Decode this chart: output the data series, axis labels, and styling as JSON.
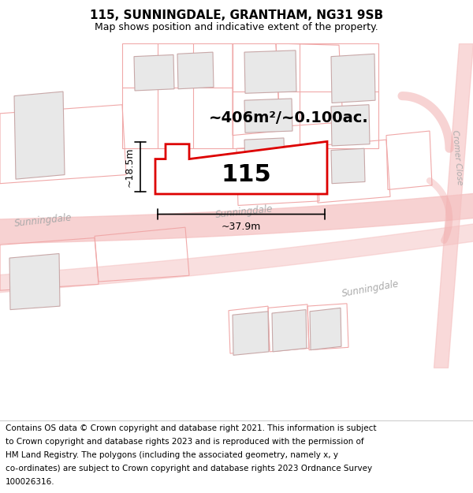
{
  "title": "115, SUNNINGDALE, GRANTHAM, NG31 9SB",
  "subtitle": "Map shows position and indicative extent of the property.",
  "footer_lines": [
    "Contains OS data © Crown copyright and database right 2021. This information is subject",
    "to Crown copyright and database rights 2023 and is reproduced with the permission of",
    "HM Land Registry. The polygons (including the associated geometry, namely x, y",
    "co-ordinates) are subject to Crown copyright and database rights 2023 Ordnance Survey",
    "100026316."
  ],
  "area_label": "~406m²/~0.100ac.",
  "plot_number": "115",
  "dim_width": "~37.9m",
  "dim_height": "~18.5m",
  "bg_color": "#ffffff",
  "map_bg": "#ffffff",
  "plot_color": "#dd0000",
  "faded_color": "#f0a8a8",
  "building_fill": "#e8e8e8",
  "building_stroke": "#c8a8a8",
  "road_color": "#f5c0c0",
  "road_label_color": "#aaaaaa",
  "cromer_label_color": "#aaaaaa",
  "title_fontsize": 11,
  "subtitle_fontsize": 9,
  "footer_fontsize": 7.5,
  "area_fontsize": 14,
  "plot_num_fontsize": 22,
  "dim_fontsize": 9
}
